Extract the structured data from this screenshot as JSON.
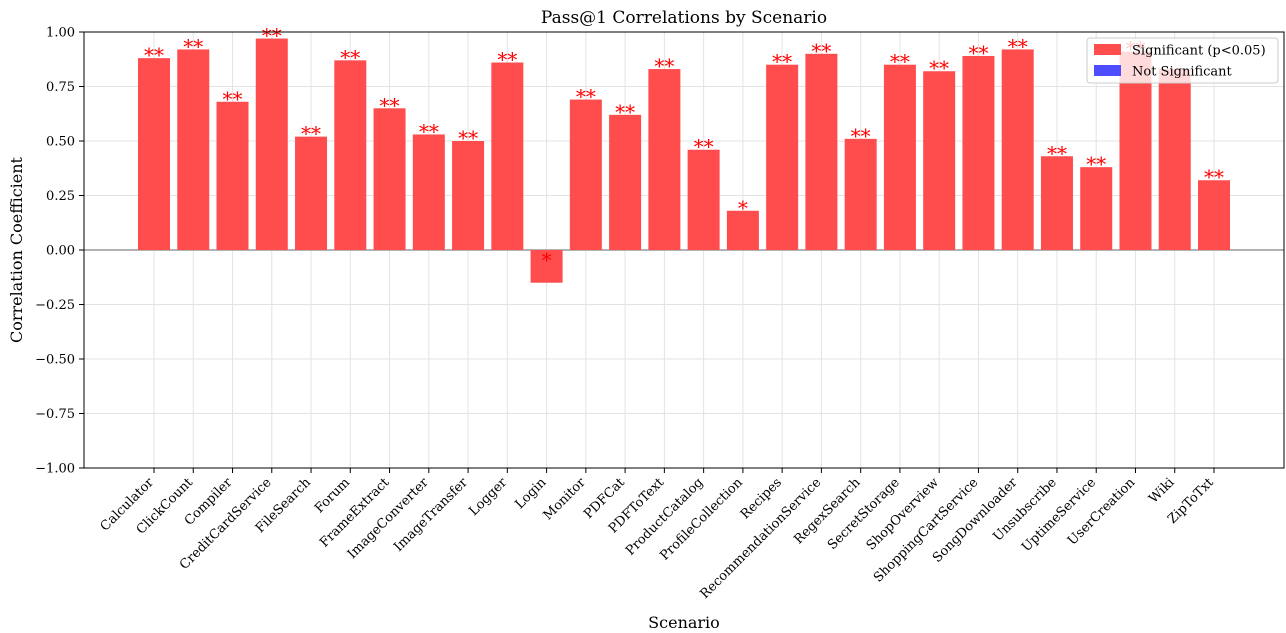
{
  "chart_data": {
    "type": "bar",
    "title": "Pass@1 Correlations by Scenario",
    "xlabel": "Scenario",
    "ylabel": "Correlation Coefficient",
    "ylim": [
      -1.0,
      1.0
    ],
    "yticks": [
      "−1.00",
      "−0.75",
      "−0.50",
      "−0.25",
      "0.00",
      "0.25",
      "0.50",
      "0.75",
      "1.00"
    ],
    "ytick_values": [
      -1.0,
      -0.75,
      -0.5,
      -0.25,
      0.0,
      0.25,
      0.5,
      0.75,
      1.0
    ],
    "grid": true,
    "legend_position": "top-right",
    "legend": [
      {
        "label": "Significant (p<0.05)",
        "color": "#ff4d4d"
      },
      {
        "label": "Not Significant",
        "color": "#4d4dff"
      }
    ],
    "categories": [
      "Calculator",
      "ClickCount",
      "Compiler",
      "CreditCardService",
      "FileSearch",
      "Forum",
      "FrameExtract",
      "ImageConverter",
      "ImageTransfer",
      "Logger",
      "Login",
      "Monitor",
      "PDFCat",
      "PDFToText",
      "ProductCatalog",
      "ProfileCollection",
      "Recipes",
      "RecommendationService",
      "RegexSearch",
      "SecretStorage",
      "ShopOverview",
      "ShoppingCartService",
      "SongDownloader",
      "Unsubscribe",
      "UptimeService",
      "UserCreation",
      "Wiki",
      "ZipToTxt"
    ],
    "values": [
      0.88,
      0.92,
      0.68,
      0.97,
      0.52,
      0.87,
      0.65,
      0.53,
      0.5,
      0.86,
      -0.15,
      0.69,
      0.62,
      0.83,
      0.46,
      0.18,
      0.85,
      0.9,
      0.51,
      0.85,
      0.82,
      0.89,
      0.92,
      0.43,
      0.38,
      0.91,
      0.83,
      0.32
    ],
    "significance": [
      "**",
      "**",
      "**",
      "**",
      "**",
      "**",
      "**",
      "**",
      "**",
      "**",
      "*",
      "**",
      "**",
      "**",
      "**",
      "*",
      "**",
      "**",
      "**",
      "**",
      "**",
      "**",
      "**",
      "**",
      "**",
      "**",
      "",
      "**"
    ],
    "bar_color": "#ff4d4d",
    "marker_color": "#ff0000"
  }
}
